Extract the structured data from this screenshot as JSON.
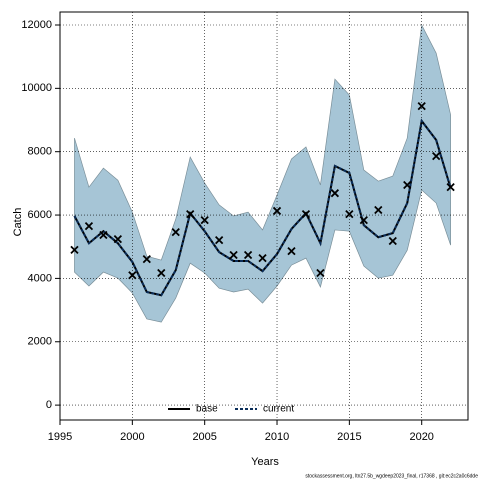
{
  "chart_data": {
    "type": "band-line",
    "xlabel": "Years",
    "ylabel": "Catch",
    "footer": "stockassessment.org, ltn27.5b_wgdeep2023_final, r17368 , git:ec2c2a0c6dde",
    "x": [
      1996,
      1997,
      1998,
      1999,
      2000,
      2001,
      2002,
      2003,
      2004,
      2005,
      2006,
      2007,
      2008,
      2009,
      2010,
      2011,
      2012,
      2013,
      2014,
      2015,
      2016,
      2017,
      2018,
      2019,
      2020,
      2021,
      2022
    ],
    "upper": [
      8430,
      6880,
      7480,
      7100,
      6090,
      4700,
      4580,
      5870,
      7830,
      7010,
      6320,
      5970,
      6090,
      5530,
      6630,
      7770,
      8150,
      6950,
      10290,
      9790,
      7420,
      7070,
      7230,
      8430,
      12000,
      11110,
      9160
    ],
    "lower": [
      4200,
      3760,
      4200,
      4010,
      3540,
      2720,
      2620,
      3380,
      4480,
      4170,
      3690,
      3570,
      3660,
      3220,
      3760,
      4420,
      4640,
      3730,
      5530,
      5490,
      4390,
      4010,
      4100,
      4890,
      6790,
      6380,
      5050
    ],
    "band_color": "#a6c5d6",
    "series": [
      {
        "name": "base",
        "color": "#000000",
        "style": "solid",
        "values": [
          5970,
          5110,
          5490,
          5110,
          4520,
          3570,
          3470,
          4260,
          6060,
          5490,
          4830,
          4550,
          4550,
          4230,
          4770,
          5560,
          6060,
          5110,
          7550,
          7330,
          5680,
          5300,
          5430,
          6380,
          8970,
          8370,
          6850
        ]
      },
      {
        "name": "current",
        "color": "#0b2e5a",
        "style": "dashed",
        "values": [
          5970,
          5110,
          5490,
          5110,
          4520,
          3570,
          3470,
          4260,
          6060,
          5490,
          4830,
          4550,
          4550,
          4230,
          4770,
          5560,
          6060,
          5110,
          7550,
          7330,
          5680,
          5300,
          5430,
          6380,
          8970,
          8370,
          6850
        ]
      }
    ],
    "observed": [
      4900,
      5650,
      5370,
      5240,
      4100,
      4610,
      4170,
      5460,
      6030,
      5840,
      5210,
      4740,
      4740,
      4640,
      6130,
      4860,
      6030,
      4170,
      6690,
      6030,
      5840,
      6160,
      5180,
      6950,
      9440,
      7860,
      6880
    ],
    "xlim": [
      1995,
      2023.2
    ],
    "ylim": [
      -470,
      12410
    ],
    "xticks": [
      1995,
      2000,
      2005,
      2010,
      2015,
      2020
    ],
    "yticks": [
      0,
      2000,
      4000,
      6000,
      8000,
      10000,
      12000
    ],
    "grid": true,
    "legend": "bottom"
  }
}
